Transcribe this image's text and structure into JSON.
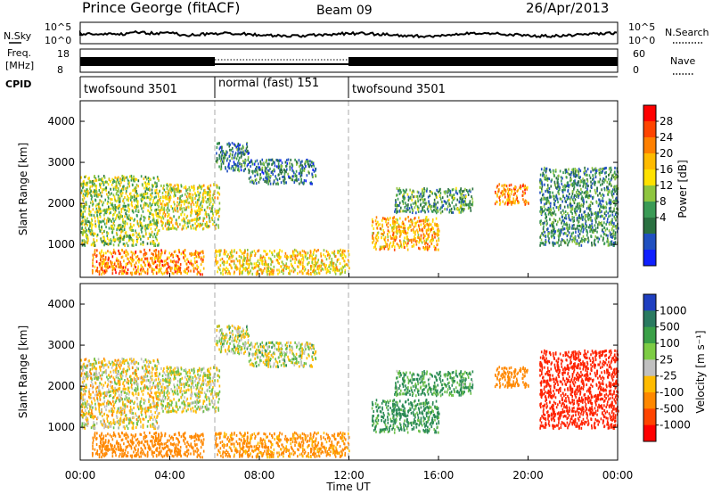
{
  "header": {
    "title": "Prince George (fitACF)",
    "beam": "Beam 09",
    "date": "26/Apr/2013"
  },
  "noise_panel": {
    "left_label": "N.Sky",
    "right_label": "N.Search",
    "left_ticks": [
      "10^5",
      "10^0"
    ],
    "right_ticks": [
      "10^5",
      "10^0"
    ]
  },
  "freq_panel": {
    "left_label_line1": "Freq.",
    "left_label_line2": "[MHz]",
    "left_ticks": [
      "18",
      "8"
    ],
    "right_label": "Nave",
    "right_ticks": [
      "60",
      "0"
    ]
  },
  "cpid_panel": {
    "label": "CPID",
    "segments": [
      {
        "label": "twofsound 3501",
        "start": "00:00",
        "end": "06:00"
      },
      {
        "label": "normal (fast) 151",
        "start": "06:00",
        "end": "12:00"
      },
      {
        "label": "twofsound 3501",
        "start": "12:00",
        "end": "24:00"
      }
    ]
  },
  "power_panel": {
    "ylabel": "Slant Range [km]",
    "yticks": [
      "1000",
      "2000",
      "3000",
      "4000"
    ],
    "colorbar_label": "Power [dB]",
    "colorbar_ticks": [
      "28",
      "24",
      "20",
      "16",
      "12",
      "8",
      "4"
    ],
    "colorbar_colors": [
      "#ff0000",
      "#ff4400",
      "#ff8000",
      "#ffbb00",
      "#ffe100",
      "#8ec53f",
      "#3a9a55",
      "#2a7040",
      "#2050c0",
      "#1020ff"
    ]
  },
  "velocity_panel": {
    "ylabel": "Slant Range [km]",
    "yticks": [
      "1000",
      "2000",
      "3000",
      "4000"
    ],
    "colorbar_label": "Velocity [m s⁻¹]",
    "colorbar_ticks": [
      "1000",
      "500",
      "100",
      "25",
      "-25",
      "-100",
      "-500",
      "-1000"
    ],
    "colorbar_colors": [
      "#1f3fc0",
      "#2a7a60",
      "#3aa047",
      "#7dcc44",
      "#c0c0c0",
      "#ffbb00",
      "#ff8800",
      "#ff4400",
      "#ff0000"
    ]
  },
  "xaxis": {
    "label": "Time UT",
    "ticks": [
      "00:00",
      "04:00",
      "08:00",
      "12:00",
      "16:00",
      "20:00",
      "00:00"
    ]
  },
  "chart_data": {
    "type": "heatmap",
    "title": "Prince George (fitACF)",
    "subtitle": "Beam 09 — 26/Apr/2013",
    "xlabel": "Time UT",
    "ylabel": "Slant Range [km]",
    "x_range_hours": [
      0,
      24
    ],
    "y_range_km": [
      200,
      4500
    ],
    "power_units": "dB",
    "power_scale": [
      0,
      30
    ],
    "velocity_units": "m s⁻¹",
    "velocity_scale": [
      -1000,
      1000
    ],
    "echo_regions": [
      {
        "t_start": 0.0,
        "t_end": 3.5,
        "range_start": 1000,
        "range_end": 2700,
        "power_db": 14,
        "velocity": -30
      },
      {
        "t_start": 0.5,
        "t_end": 5.5,
        "range_start": 300,
        "range_end": 900,
        "power_db": 22,
        "velocity": -300
      },
      {
        "t_start": 3.5,
        "t_end": 6.2,
        "range_start": 1400,
        "range_end": 2500,
        "power_db": 16,
        "velocity": 0
      },
      {
        "t_start": 6.0,
        "t_end": 7.5,
        "range_start": 2800,
        "range_end": 3500,
        "power_db": 8,
        "velocity": 10
      },
      {
        "t_start": 6.0,
        "t_end": 12.0,
        "range_start": 300,
        "range_end": 900,
        "power_db": 18,
        "velocity": -150
      },
      {
        "t_start": 7.5,
        "t_end": 10.5,
        "range_start": 2500,
        "range_end": 3100,
        "power_db": 8,
        "velocity": 15
      },
      {
        "t_start": 13.0,
        "t_end": 16.0,
        "range_start": 900,
        "range_end": 1700,
        "power_db": 20,
        "velocity": 150
      },
      {
        "t_start": 14.0,
        "t_end": 17.5,
        "range_start": 1800,
        "range_end": 2400,
        "power_db": 10,
        "velocity": 120
      },
      {
        "t_start": 18.5,
        "t_end": 20.0,
        "range_start": 2000,
        "range_end": 2500,
        "power_db": 22,
        "velocity": -200
      },
      {
        "t_start": 20.5,
        "t_end": 24.0,
        "range_start": 1000,
        "range_end": 2900,
        "power_db": 9,
        "velocity": -600
      }
    ]
  }
}
